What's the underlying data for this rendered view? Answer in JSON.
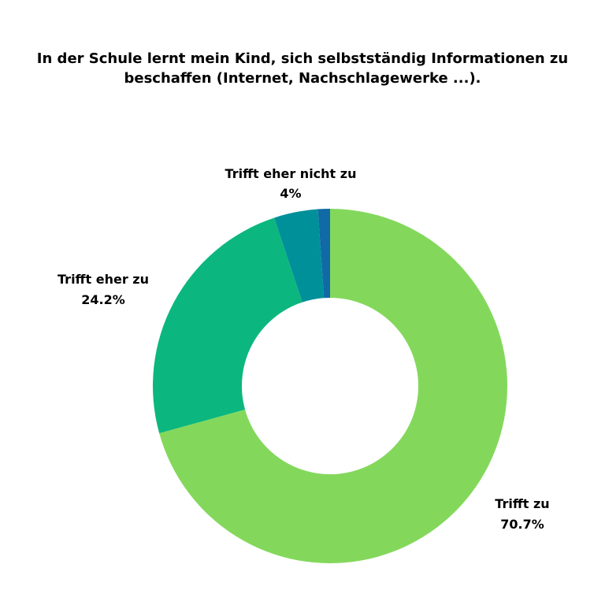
{
  "chart_data": {
    "type": "pie",
    "title_lines": [
      "In der Schule lernt mein Kind, sich selbstständig Informationen zu",
      "beschaffen (Internet, Nachschlagewerke ...)."
    ],
    "slices": [
      {
        "label": "Trifft zu",
        "value": 70.7,
        "display": "70.7%",
        "color": "#83d85c"
      },
      {
        "label": "Trifft eher zu",
        "value": 24.2,
        "display": "24.2%",
        "color": "#0bb77e"
      },
      {
        "label": "Trifft eher nicht zu",
        "value": 4.0,
        "display": "4%",
        "color": "#00909a"
      },
      {
        "label": "",
        "value": 1.1,
        "display": "",
        "color": "#0f6aa6"
      }
    ],
    "start_angle_deg": 0,
    "direction": "clockwise",
    "donut": true
  }
}
